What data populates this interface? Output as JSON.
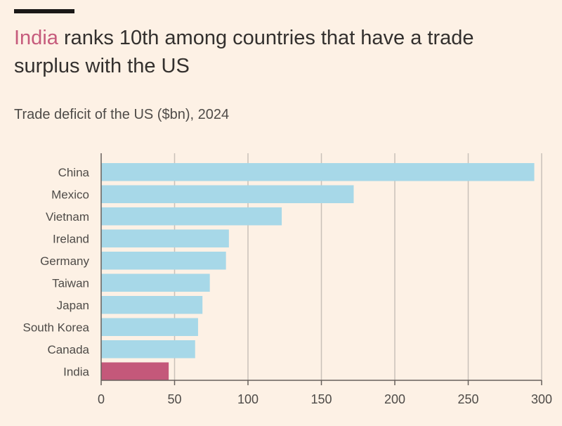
{
  "header": {
    "title_highlight": "India",
    "title_rest": " ranks 10th among countries that have a trade surplus with the US",
    "subtitle": "Trade deficit of the US ($bn), 2024"
  },
  "colors": {
    "bar_default": "#a7d8e8",
    "bar_highlight": "#c4587a",
    "grid": "#c9c1b9",
    "axis": "#66605c"
  },
  "chart_data": {
    "type": "bar",
    "orientation": "horizontal",
    "categories": [
      "China",
      "Mexico",
      "Vietnam",
      "Ireland",
      "Germany",
      "Taiwan",
      "Japan",
      "South Korea",
      "Canada",
      "India"
    ],
    "values": [
      295,
      172,
      123,
      87,
      85,
      74,
      69,
      66,
      64,
      46
    ],
    "highlight": "India",
    "xlim": [
      0,
      300
    ],
    "xticks": [
      0,
      50,
      100,
      150,
      200,
      250,
      300
    ],
    "grid": true
  }
}
